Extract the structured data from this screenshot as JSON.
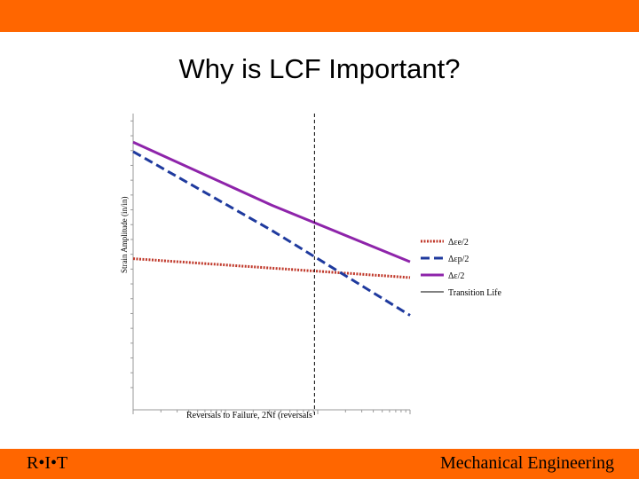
{
  "slide": {
    "title": "Why is LCF Important?",
    "footer_left": "R•I•T",
    "footer_right": "Mechanical Engineering",
    "bar_color": "#ff6600"
  },
  "chart_data": {
    "type": "line",
    "xlabel": "Reversals to Failure, 2Nf (reversals",
    "ylabel": "Strain Amplitude (in/in)",
    "xscale": "log",
    "yscale": "log",
    "tick_labels": "none",
    "grid": false,
    "legend_position": "right",
    "transition_life_x": 0.655,
    "series": [
      {
        "name": "Δεe/2",
        "color": "#c0392b",
        "dash": "dotted",
        "x": [
          0,
          0.5,
          1
        ],
        "y": [
          0.48,
          0.45,
          0.42
        ]
      },
      {
        "name": "Δεp/2",
        "color": "#1f3a9e",
        "dash": "dashed",
        "x": [
          0,
          0.5,
          1
        ],
        "y": [
          0.82,
          0.57,
          0.3
        ]
      },
      {
        "name": "Δε/2",
        "color": "#8e24aa",
        "dash": "solid",
        "x": [
          0,
          0.5,
          1
        ],
        "y": [
          0.85,
          0.65,
          0.47
        ]
      },
      {
        "name": "Transition Life",
        "color": "#000000",
        "dash": "solid"
      }
    ]
  }
}
